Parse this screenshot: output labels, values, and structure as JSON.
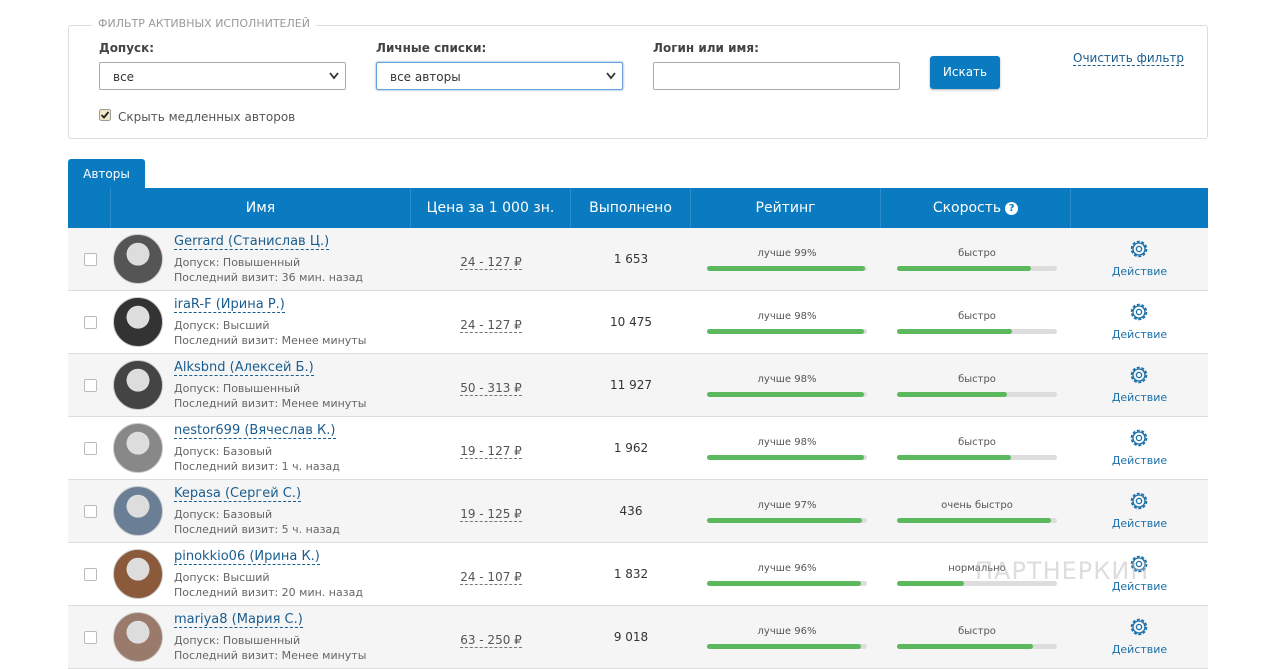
{
  "filter": {
    "legend": "ФИЛЬТР АКТИВНЫХ ИСПОЛНИТЕЛЕЙ",
    "access_label": "Допуск:",
    "access_value": "все",
    "lists_label": "Личные списки:",
    "lists_value": "все авторы",
    "login_label": "Логин или имя:",
    "search_button": "Искать",
    "clear": "Очистить фильтр",
    "hide_slow": "Скрыть медленных авторов"
  },
  "tab": "Авторы",
  "watermark": "ПАРТНЕРКИН",
  "table": {
    "columns": [
      "Имя",
      "Цена за 1 000 зн.",
      "Выполнено",
      "Рейтинг",
      "Скорость"
    ],
    "rows": [
      {
        "name": "Gerrard (Станислав Ц.)",
        "access": "Допуск: Повышенный",
        "visit": "Последний визит: 36 мин. назад",
        "price": "24 - 127 ₽",
        "done": "1 653",
        "rating": "лучше 99%",
        "rating_bar": 99,
        "speed": "быстро",
        "speed_bar": 84,
        "action": "Действие"
      },
      {
        "name": "iraR-F (Ирина Р.)",
        "access": "Допуск: Высший",
        "visit": "Последний визит: Менее минуты",
        "price": "24 - 127 ₽",
        "done": "10 475",
        "rating": "лучше 98%",
        "rating_bar": 98,
        "speed": "быстро",
        "speed_bar": 72,
        "action": "Действие"
      },
      {
        "name": "Alksbnd (Алексей Б.)",
        "access": "Допуск: Повышенный",
        "visit": "Последний визит: Менее минуты",
        "price": "50 - 313 ₽",
        "done": "11 927",
        "rating": "лучше 98%",
        "rating_bar": 98,
        "speed": "быстро",
        "speed_bar": 69,
        "action": "Действие"
      },
      {
        "name": "nestor699 (Вячеслав К.)",
        "access": "Допуск: Базовый",
        "visit": "Последний визит: 1 ч. назад",
        "price": "19 - 127 ₽",
        "done": "1 962",
        "rating": "лучше 98%",
        "rating_bar": 98,
        "speed": "быстро",
        "speed_bar": 71,
        "action": "Действие"
      },
      {
        "name": "Kepasa (Сергей С.)",
        "access": "Допуск: Базовый",
        "visit": "Последний визит: 5 ч. назад",
        "price": "19 - 125 ₽",
        "done": "436",
        "rating": "лучше 97%",
        "rating_bar": 97,
        "speed": "очень быстро",
        "speed_bar": 96,
        "action": "Действие"
      },
      {
        "name": "pinokkio06 (Ирина К.)",
        "access": "Допуск: Высший",
        "visit": "Последний визит: 20 мин. назад",
        "price": "24 - 107 ₽",
        "done": "1 832",
        "rating": "лучше 96%",
        "rating_bar": 96,
        "speed": "нормально",
        "speed_bar": 42,
        "action": "Действие"
      },
      {
        "name": "mariya8 (Мария С.)",
        "access": "Допуск: Повышенный",
        "visit": "Последний визит: Менее минуты",
        "price": "63 - 250 ₽",
        "done": "9 018",
        "rating": "лучше 96%",
        "rating_bar": 96,
        "speed": "быстро",
        "speed_bar": 85,
        "action": "Действие"
      }
    ]
  }
}
